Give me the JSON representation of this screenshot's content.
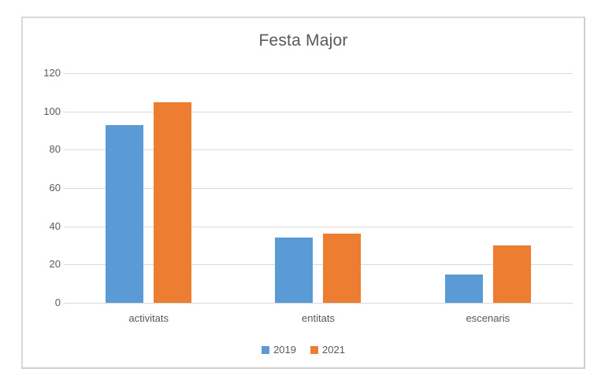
{
  "chart_data": {
    "type": "bar",
    "title": "Festa Major",
    "categories": [
      "activitats",
      "entitats",
      "escenaris"
    ],
    "series": [
      {
        "name": "2019",
        "color": "#5B9BD5",
        "values": [
          93,
          34,
          15
        ]
      },
      {
        "name": "2021",
        "color": "#ED7D31",
        "values": [
          105,
          36,
          30
        ]
      }
    ],
    "xlabel": "",
    "ylabel": "",
    "ylim": [
      0,
      120
    ],
    "yticks": [
      0,
      20,
      40,
      60,
      80,
      100,
      120
    ],
    "grid": true,
    "legend_position": "bottom"
  },
  "colors": {
    "text": "#595959",
    "gridline": "#D9D9D9",
    "chart_border": "#D9D9D9",
    "background": "#FFFFFF",
    "series_2019": "#5B9BD5",
    "series_2021": "#ED7D31"
  }
}
